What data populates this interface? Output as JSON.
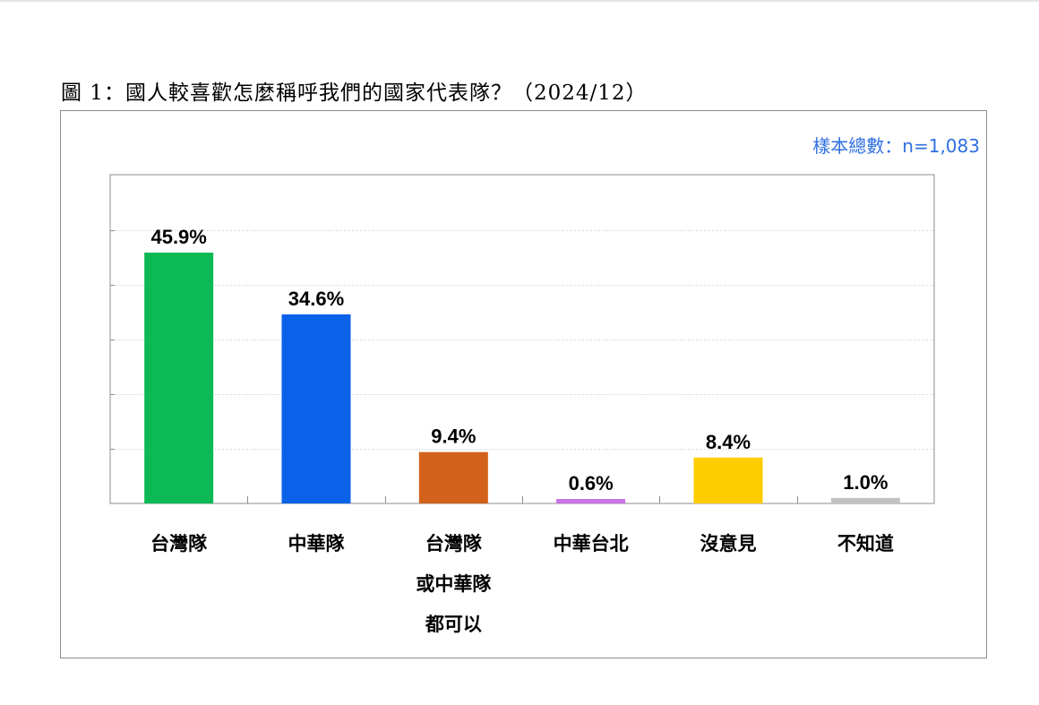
{
  "figure": {
    "title": "圖 1：國人較喜歡怎麼稱呼我們的國家代表隊？（2024/12）",
    "sample_note": "樣本總數：n=1,083"
  },
  "chart_data": {
    "type": "bar",
    "categories": [
      [
        "台灣隊"
      ],
      [
        "中華隊"
      ],
      [
        "台灣隊",
        "或中華隊",
        "都可以"
      ],
      [
        "中華台北"
      ],
      [
        "沒意見"
      ],
      [
        "不知道"
      ]
    ],
    "values": [
      45.9,
      34.6,
      9.4,
      0.6,
      8.4,
      1.0
    ],
    "data_labels": [
      "45.9%",
      "34.6%",
      "9.4%",
      "0.6%",
      "8.4%",
      "1.0%"
    ],
    "colors": [
      "#0cb954",
      "#0a62e8",
      "#d2621b",
      "#c973e6",
      "#ffcc00",
      "#c2c2c2"
    ],
    "ylim": [
      0,
      50
    ],
    "gridlines": [
      10,
      20,
      30,
      40,
      50
    ],
    "grid": true,
    "legend": "none"
  }
}
